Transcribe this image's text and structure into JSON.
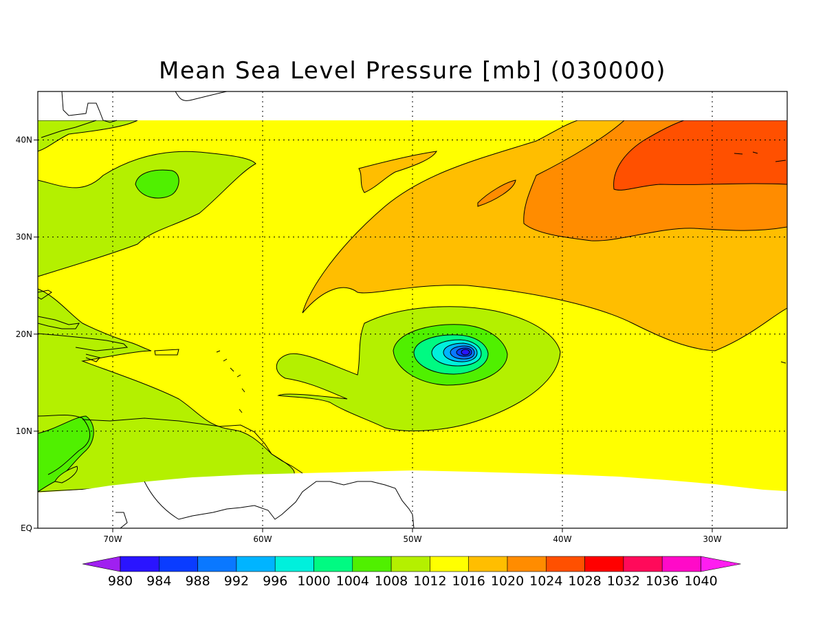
{
  "title": "Mean Sea Level Pressure [mb] (030000)",
  "map": {
    "lon_range": [
      -75,
      -25
    ],
    "lat_range": [
      0,
      45
    ],
    "data_lat_range": [
      4,
      42
    ],
    "x_ticks": [
      {
        "value": -70,
        "label": "70W"
      },
      {
        "value": -60,
        "label": "60W"
      },
      {
        "value": -50,
        "label": "50W"
      },
      {
        "value": -40,
        "label": "40W"
      },
      {
        "value": -30,
        "label": "30W"
      }
    ],
    "y_ticks": [
      {
        "value": 0,
        "label": "EQ"
      },
      {
        "value": 10,
        "label": "10N"
      },
      {
        "value": 20,
        "label": "20N"
      },
      {
        "value": 30,
        "label": "30N"
      },
      {
        "value": 40,
        "label": "40N"
      }
    ],
    "grid": "dotted",
    "background_color": "#ffff00",
    "features": [
      {
        "name": "central low",
        "lon": -46.6,
        "lat": 18.2,
        "type": "low"
      },
      {
        "name": "north-east high",
        "lon": -30,
        "lat": 38,
        "type": "high"
      }
    ]
  },
  "colorbar": {
    "placement": "bottom",
    "levels": [
      "980",
      "984",
      "988",
      "992",
      "996",
      "1000",
      "1004",
      "1008",
      "1012",
      "1016",
      "1020",
      "1024",
      "1028",
      "1032",
      "1036",
      "1040"
    ],
    "colors": [
      "#a020f0",
      "#2a14ff",
      "#0a3cff",
      "#0a78ff",
      "#00b4ff",
      "#00f0dc",
      "#00fa82",
      "#50f000",
      "#b4f000",
      "#ffff00",
      "#ffbe00",
      "#ff8c00",
      "#ff5000",
      "#ff0000",
      "#ff0a5a",
      "#ff0ac8",
      "#ff1ef0"
    ]
  }
}
